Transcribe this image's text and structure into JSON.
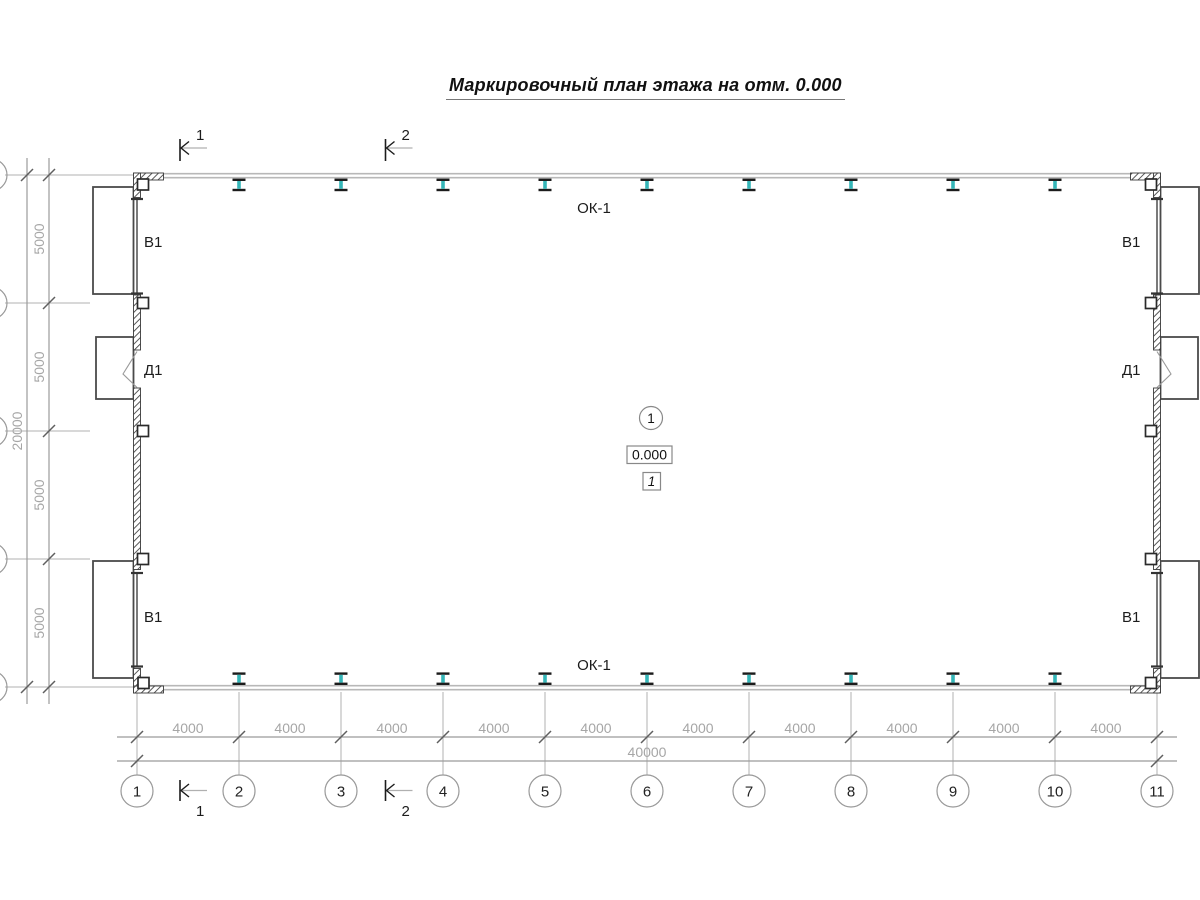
{
  "title": "Маркировочный план этажа на отм. 0.000",
  "labels": {
    "windows_top": "ОК-1",
    "windows_bottom": "ОК-1",
    "gate_top_left": "В1",
    "gate_top_right": "В1",
    "gate_bottom_left": "В1",
    "gate_bottom_right": "В1",
    "door_left": "Д1",
    "door_right": "Д1"
  },
  "center_marks": {
    "room_number": "1",
    "floor_elevation": "0.000",
    "floor_type": "1"
  },
  "section_marks": {
    "top": [
      "1",
      "2"
    ],
    "bottom": [
      "1",
      "2"
    ]
  },
  "grid": {
    "column_bubbles": [
      "1",
      "2",
      "3",
      "4",
      "5",
      "6",
      "7",
      "8",
      "9",
      "10",
      "11"
    ]
  },
  "dimensions": {
    "bottom_bays": [
      "4000",
      "4000",
      "4000",
      "4000",
      "4000",
      "4000",
      "4000",
      "4000",
      "4000",
      "4000"
    ],
    "bottom_total": "40000",
    "left_rows": [
      "5000",
      "5000",
      "5000",
      "5000"
    ],
    "left_total": "20000"
  },
  "colors": {
    "wall_line": "#b8b8b8",
    "hatch": "#3a3a3a",
    "column_web": "#35b6b8",
    "column_flange": "#1c1c1c",
    "dimension_line": "#9b9b9b",
    "dimension_text": "#a6a6a6",
    "extension_line": "#b0b0b0",
    "tick": "#5f5f5f",
    "bubble_stroke": "#999999",
    "text_dark": "#1c1c1c",
    "platform_stroke": "#4a4a4a"
  }
}
